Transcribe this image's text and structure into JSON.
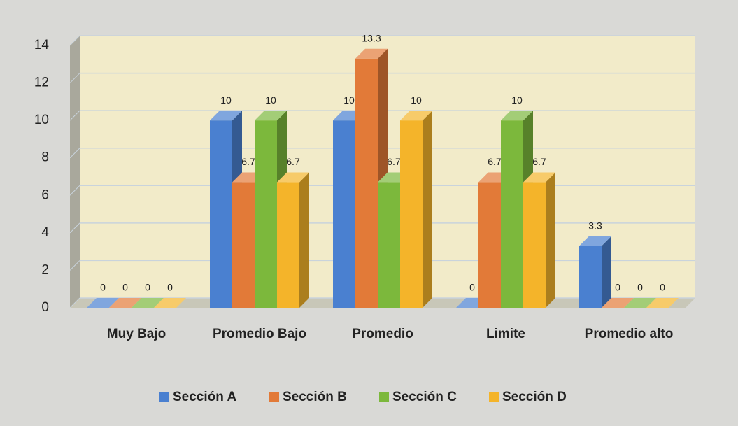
{
  "chart_data": {
    "type": "bar3d",
    "categories": [
      "Muy Bajo",
      "Promedio Bajo",
      "Promedio",
      "Limite",
      "Promedio alto"
    ],
    "series": [
      {
        "name": "Sección A",
        "color": "#4a80d0",
        "values": [
          0,
          10,
          10,
          0,
          3.3
        ]
      },
      {
        "name": "Sección B",
        "color": "#e27a38",
        "values": [
          0,
          6.7,
          13.3,
          6.7,
          0
        ]
      },
      {
        "name": "Sección C",
        "color": "#7cb83c",
        "values": [
          0,
          10,
          6.7,
          10,
          0
        ]
      },
      {
        "name": "Sección D",
        "color": "#f4b42a",
        "values": [
          0,
          6.7,
          10,
          6.7,
          0
        ]
      }
    ],
    "ylim": [
      0,
      14
    ],
    "yticks": [
      0,
      2,
      4,
      6,
      8,
      10,
      12,
      14
    ],
    "grid": true,
    "legend": "bottom"
  }
}
